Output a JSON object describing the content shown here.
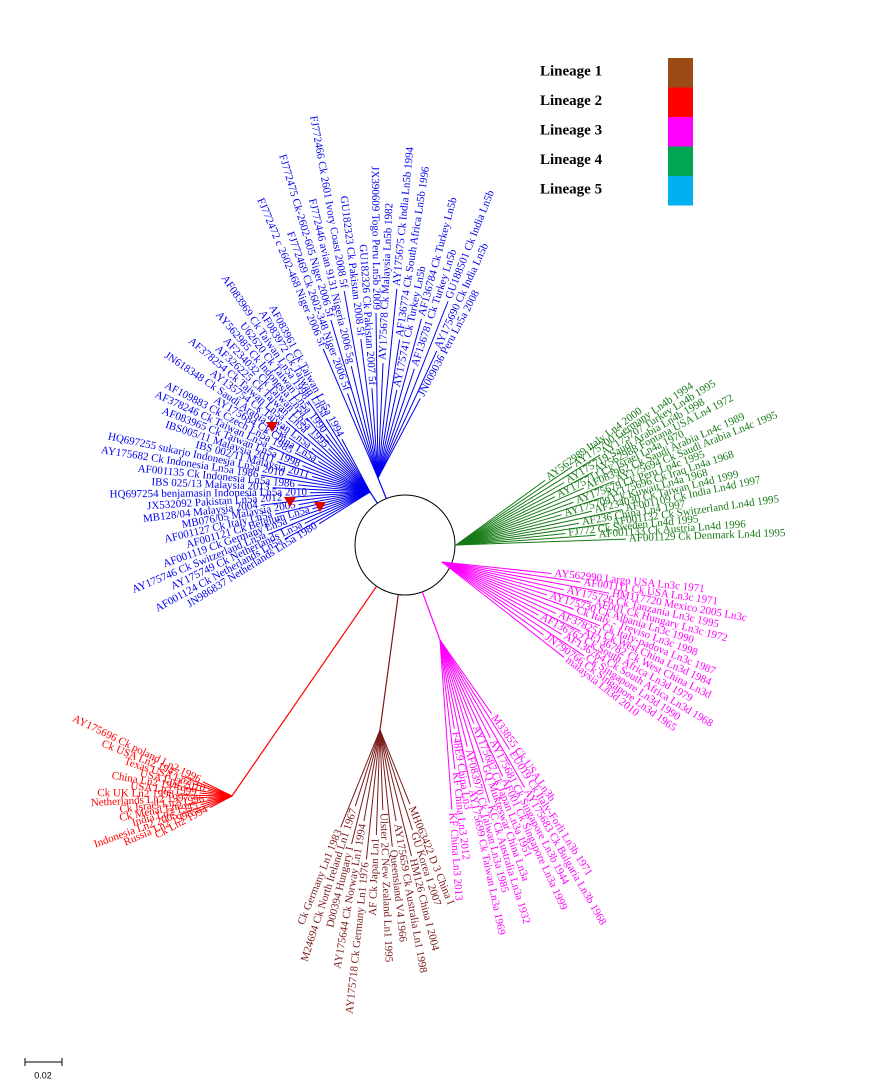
{
  "legend": [
    {
      "label": "Lineage  1",
      "color": "#9a4c14"
    },
    {
      "label": "Lineage  2",
      "color": "#ff0000"
    },
    {
      "label": "Lineage  3",
      "color": "#ff00ff"
    },
    {
      "label": "Lineage  4",
      "color": "#00a651"
    },
    {
      "label": "Lineage  5",
      "color": "#00b0f0"
    }
  ],
  "clades": [
    {
      "color": "#0000ee",
      "leaves": [
        "JN009036 Peru Ln5a 2008",
        "AY175690 Ck India Ln5b",
        "GU188501 Ck India Ln5b",
        "AF136781 Ck Turkey Ln5b",
        "AF136784 Ck Turkey Ln5b",
        "AY175741 Ck Turkey Ln5b",
        "AF136774 Ck South Africa Ln5b 1996",
        "AY175675 Ck India Ln5b 1994",
        "AY175678 Ck Malaysia Ln5b 1982",
        "JX390609 Togo Peru Ln5b 2009",
        "GU182326 Ck Pakistan 2007 5f",
        "GU182323 Ck Pakistan 2008 5f",
        "FJ772466 Ck 2601 Ivory Coast 2008 5f",
        "FJ772446 avian 9131 Nigeria 2006 5g",
        "FJ772475 Ck-2602-605 Niger 2006 5f",
        "FJ772469 Ck 2602-348 Niger 2006 5f",
        "FJ772472 c 2602-468 Niger 2006 5f"
      ]
    },
    {
      "color": "#0000ee",
      "leaves": [
        "AF083961 Ck Taiwan Ln5a 1994",
        "AF083972 Ck Taiwan Ln5a",
        "AF083969 Ck Taiwan Ln5a 1998",
        "U62620 Ck Taiwan Ln5a 1990",
        "AY562985 Ck Indonesia Ln5a",
        "AF234032 Ck Taiwan Ln5a 1995",
        "AF326225 Ck Taiwan Ln5a",
        "AF378254 Ck Taiwan Ln5a",
        "AY135754 Ck Taiwan Ln5a",
        "JN618348 Ck Saudi Arabia Ln5a",
        "AY175684 Ck China Ln5a",
        "AF109883 Ck Czech Ln5a 1985",
        "AF378246 Ck Taiwan Ln5a",
        "AF083965 Ck Taiwan Ln5a 1998",
        "IBS005/11 Malaysia 2011",
        "IBS 002/11 Malaysia 2011",
        "HQ697255 sukarjo Indonesia Ln5a 2010",
        "AY175682 Ck Indonesia Ln5a 1986",
        "AF001135 Ck Indonesia Ln5a 1986",
        "IBS 025/13 Malaysia 2013",
        "HQ697254 benjamasin Indonesia Ln5a 2010",
        "JX532092 Pakistan Ln5a 2012",
        "MB128/04 Malaysia 2004",
        "MB076/05 Malaysia 2005",
        "AF001127 Ck Italy Ln5a",
        "AF001121 Ck Belgium Ln5a",
        "AF001119 Ck Germany Ln5a",
        "AY175746 Ck Switzerland Ln5a",
        "AY175749 Ck Netherlands Ln5a",
        "AF001124 Ck Netherlands Ln5a",
        "JN986837 Netherlands Ln5a 1980"
      ]
    },
    {
      "color": "#167a16",
      "leaves": [
        "AY562989 Italy Ln4 2000",
        "AY175700 Germany Ln4b 1994",
        "AY175707 Turkey Ln4b 1995",
        "AY175719 Saudi Arabia Ln4b 1998",
        "AY562988 Fontana USA Ln4 1972",
        "AY175711 Ck Israel Ln4a 1970",
        "AF083962 Ck Saudi Arabia Ln4c 1989",
        "AY175694 Ck Saudi Arabia Ln4c 1995",
        "AY175679 Ck Peru Ln4c 1995",
        "AY175696 Ck Iraq Ln4a 1968",
        "AY175709 Ck Kuwait Ln4a 1968",
        "AF234030 Ck Taiwan Ln4d 1999",
        "AF001109 Ck India Ln4d 1997",
        "AF236 China Ln4 1997",
        "AF001132 Ck Switzerland Ln4d 1995",
        "FJ772 Ck Sweden Ln4d 1995",
        "AF001133 Ck Austria Ln4d 1996",
        "AF001129 Ck Denmark Ln4d 1995"
      ]
    },
    {
      "color": "#ff00ff",
      "leaves": [
        "AY562990 Largo USA Ln3c 1971",
        "AF001111 Ck USA Ln3c 1971",
        "HM117720 Mexico 2005 Ln3c",
        "AY175726 Ck Tanzania Ln3c 1995",
        "AF001 Ck Hungary Ln3c 1972",
        "AY175730 Ck Albania Ln3c 1990",
        "Ck Italy - Treviso Ln3c 1998",
        "Ck Italy-padova Ln3c 1987",
        "AF378251 Ck West China Ln3d 1984",
        "AF136782 Ck West China Ln3d",
        "AF136762 Ck South Africa Ln3d 1979",
        "AF136764 Ck South Africa Ln3d 1968",
        "Ck Singapore Ln3d 1990",
        "JN790766 Ck Singapore Ln3d 1965",
        "malaysia Ln3d 2010"
      ]
    },
    {
      "color": "#ff00ff",
      "leaves": [
        "M33855 Ck USA Ln3b",
        "EU019 Ck Italy-Forli Ln3b 1971",
        "AY175683 Ck Bulgaria Ln3b 1968",
        "AY175681 Ck Singapore Ln3b 1944",
        "AF001 Ck Singapore Ln3a 1999",
        "AY175687 Ck Japan Ln3a 1951",
        "GQ Mukteswar China Ln3a",
        "KC Ck Australia Ln3a 1932",
        "AF083970 Ck Taiwan Ln3a 1985",
        "AY175699 Ck Taiwan Ln3a 1969",
        "F48E9 China Ln3",
        "KF China Ln3 2012",
        "KF China Ln3 2013"
      ]
    },
    {
      "color": "#7a1a1a",
      "leaves": [
        "MH063422 D 3 China I",
        "GU Korea I 2007",
        "HM126 China I 2004",
        "AY175659 Ck Australia Ln1 1998",
        "Queensland V4 1966",
        "Ulster 2C New Zealand Ln1 1995",
        "AF Ck Japan Ln1",
        "AY175718 Ck Germany Ln1 1976",
        "AY175644 Ck Norway Ln1 1994",
        "D00394 Hungary I",
        "M24694 Ck North Ireland Ln1 1967",
        "Ck Germany Ln1 1983"
      ]
    },
    {
      "color": "#ff0000",
      "leaves": [
        "Ck Ln2 1994",
        "Russia Ln2 1998",
        "Indonesia Ln2 2005",
        "India Ln2 1945",
        "Ck Menal Ln2",
        "Ck Israel Ln2 1996",
        "Netherlands Ln2 1997",
        "Ck UK Ln2 1998",
        "USA Ln2 1999",
        "China Ln2 1946",
        "USA Ln2 2010",
        "Texas USA Ln2",
        "Ck USA Ln2 1947",
        "AY175696 Ck poland Ln2 1996"
      ]
    }
  ],
  "scale_bar": "0.02"
}
